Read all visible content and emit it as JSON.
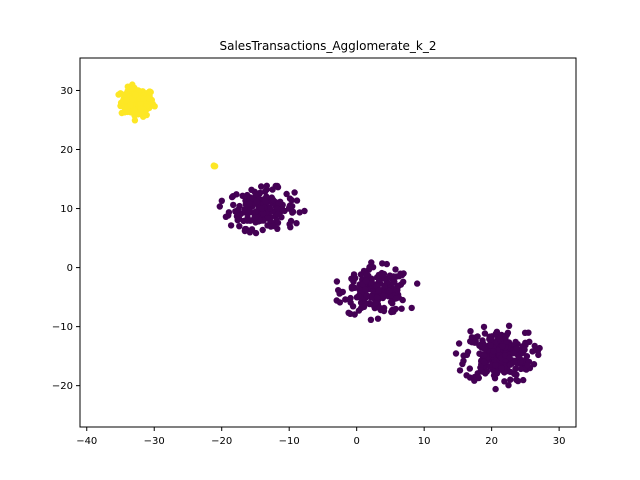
{
  "chart_data": {
    "type": "scatter",
    "title": "SalesTransactions_Agglomerate_k_2",
    "xlabel": "",
    "ylabel": "",
    "xlim": [
      -41,
      32.5
    ],
    "ylim": [
      -27,
      35.5
    ],
    "xticks": [
      -40,
      -30,
      -20,
      -10,
      0,
      10,
      20,
      30
    ],
    "yticks": [
      -20,
      -10,
      0,
      10,
      20,
      30
    ],
    "grid": false,
    "legend": "none",
    "clusters": [
      {
        "label_color": "#fde725",
        "blobs": [
          {
            "center": [
              -32.5,
              28
            ],
            "spread": [
              2.2,
              2.2
            ],
            "count": 140
          },
          {
            "center": [
              -21,
              17.3
            ],
            "spread": [
              0.3,
              0.2
            ],
            "count": 3
          }
        ]
      },
      {
        "label_color": "#440154",
        "blobs": [
          {
            "center": [
              -14,
              10
            ],
            "spread": [
              4.5,
              3.0
            ],
            "count": 190
          },
          {
            "center": [
              3,
              -4
            ],
            "spread": [
              4.5,
              3.5
            ],
            "count": 200
          },
          {
            "center": [
              21,
              -15
            ],
            "spread": [
              4.5,
              4.0
            ],
            "count": 260
          }
        ]
      }
    ]
  }
}
